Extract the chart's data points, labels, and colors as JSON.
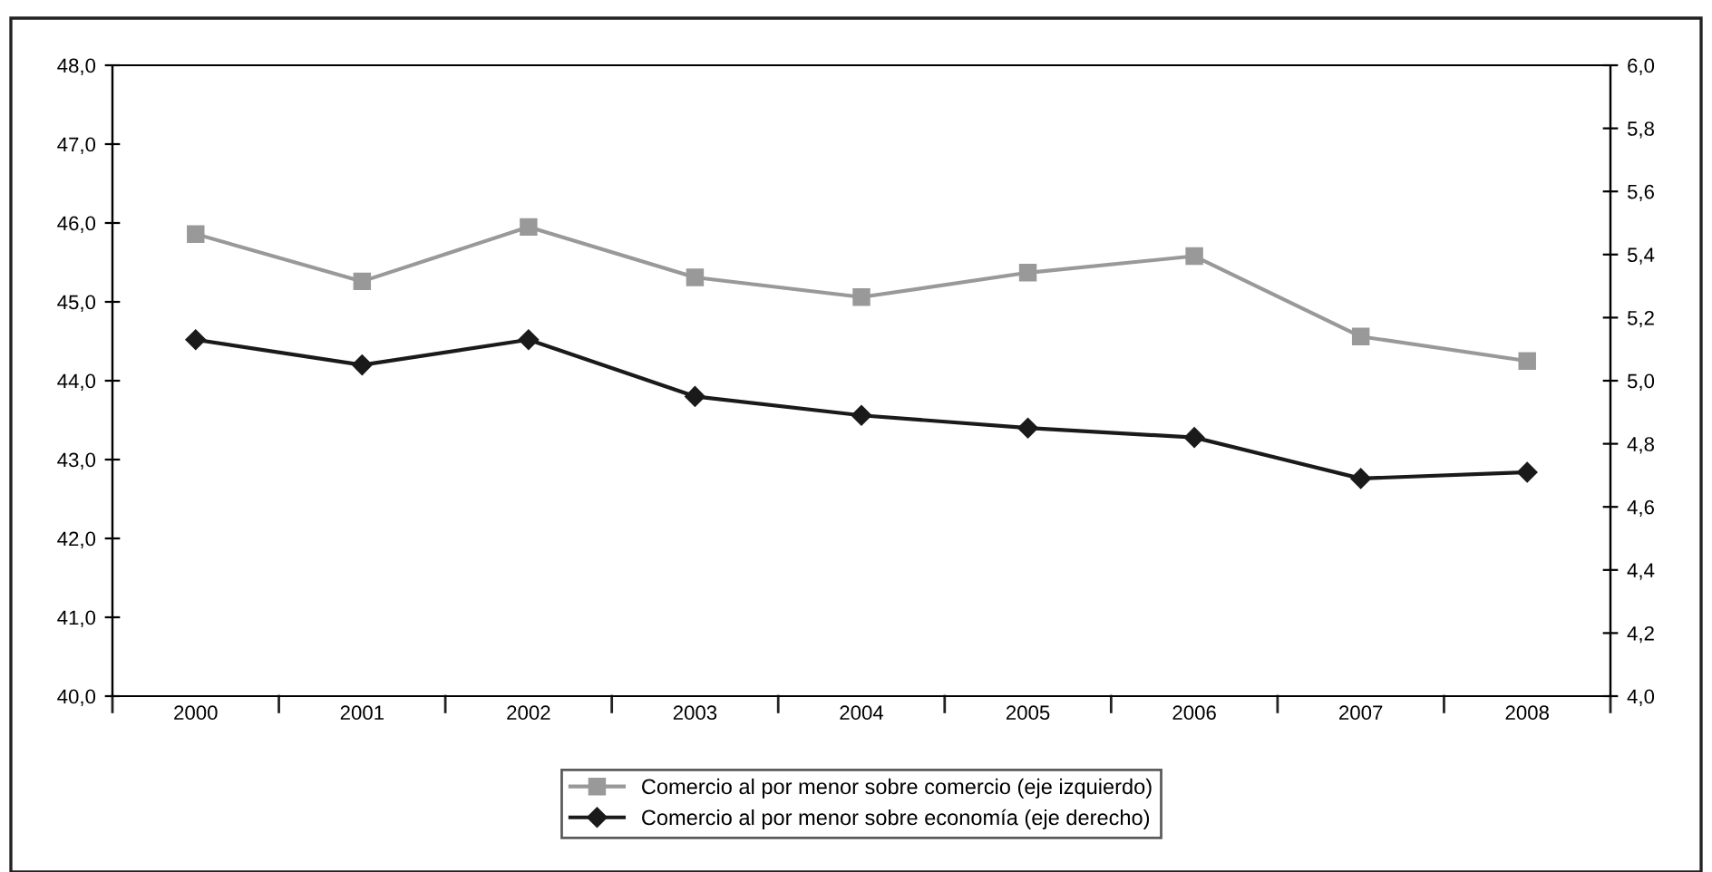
{
  "chart_data": {
    "type": "line",
    "categories": [
      "2000",
      "2001",
      "2002",
      "2003",
      "2004",
      "2005",
      "2006",
      "2007",
      "2008"
    ],
    "series": [
      {
        "name": "Comercio al por menor sobre comercio (eje izquierdo)",
        "color": "#999999",
        "marker": "square",
        "values": [
          45.86,
          45.26,
          45.95,
          45.31,
          45.06,
          45.37,
          45.58,
          44.56,
          44.25
        ]
      },
      {
        "name": "Comercio al por menor sobre economía (eje derecho)",
        "color": "#1a1a1a",
        "marker": "diamond",
        "axis": "y2",
        "values": [
          5.13,
          5.05,
          5.13,
          4.95,
          4.89,
          4.85,
          4.82,
          4.69,
          4.71
        ]
      }
    ],
    "ylim": [
      40,
      48
    ],
    "yticks": [
      {
        "value": 40,
        "label": "40,0"
      },
      {
        "value": 41,
        "label": "41,0"
      },
      {
        "value": 42,
        "label": "42,0"
      },
      {
        "value": 43,
        "label": "43,0"
      },
      {
        "value": 44,
        "label": "44,0"
      },
      {
        "value": 45,
        "label": "45,0"
      },
      {
        "value": 46,
        "label": "46,0"
      },
      {
        "value": 47,
        "label": "47,0"
      },
      {
        "value": 48,
        "label": "48,0"
      }
    ],
    "y2lim": [
      4,
      6
    ],
    "y2ticks": [
      {
        "value": 4.0,
        "label": "4,0"
      },
      {
        "value": 4.2,
        "label": "4,2"
      },
      {
        "value": 4.4,
        "label": "4,4"
      },
      {
        "value": 4.6,
        "label": "4,6"
      },
      {
        "value": 4.8,
        "label": "4,8"
      },
      {
        "value": 5.0,
        "label": "5,0"
      },
      {
        "value": 5.2,
        "label": "5,2"
      },
      {
        "value": 5.4,
        "label": "5,4"
      },
      {
        "value": 5.6,
        "label": "5,6"
      },
      {
        "value": 5.8,
        "label": "5,8"
      },
      {
        "value": 6.0,
        "label": "6,0"
      }
    ],
    "grid": false,
    "legend": "bottom",
    "line_style": "solid"
  }
}
